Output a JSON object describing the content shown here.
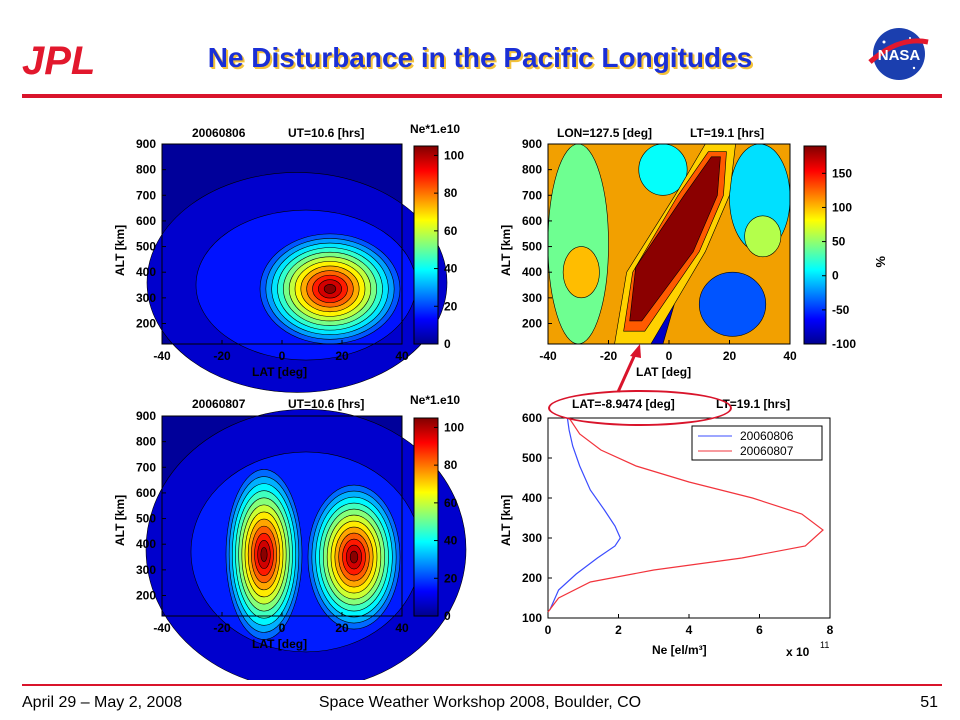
{
  "slide": {
    "title": "Ne Disturbance in the Pacific Longitudes",
    "footer_left": "April 29 – May 2, 2008",
    "footer_center": "Space Weather Workshop 2008, Boulder, CO",
    "footer_right": "51",
    "logo_left_text": "JPL",
    "logo_right_text": "NASA",
    "accent_color": "#d9142b",
    "title_color": "#1a2fd6"
  },
  "chart_data": [
    {
      "type": "heatmap",
      "title_left": "20060806",
      "title_right": "UT=10.6 [hrs]",
      "xlabel": "LAT [deg]",
      "ylabel": "ALT [km]",
      "xticks": [
        "-40",
        "-20",
        "0",
        "20",
        "40"
      ],
      "yticks": [
        "900",
        "800",
        "700",
        "600",
        "500",
        "400",
        "300",
        "200"
      ],
      "colorbar_title": "Ne*1.e10",
      "colorbar_ticks": [
        "100",
        "80",
        "60",
        "40",
        "20",
        "0"
      ],
      "xlim": [
        -40,
        40
      ],
      "ylim": [
        120,
        900
      ],
      "clim": [
        0,
        105
      ],
      "peaks": [
        {
          "lat": 18,
          "alt": 330,
          "value": 100
        }
      ]
    },
    {
      "type": "heatmap",
      "title_left": "LON=127.5 [deg]",
      "title_right": "LT=19.1 [hrs]",
      "xlabel": "LAT [deg]",
      "ylabel": "ALT [km]",
      "xticks": [
        "-40",
        "-20",
        "0",
        "20",
        "40"
      ],
      "yticks": [
        "900",
        "800",
        "700",
        "600",
        "500",
        "400",
        "300",
        "200"
      ],
      "colorbar_title": "",
      "colorbar_unit": "%",
      "colorbar_ticks": [
        "150",
        "100",
        "50",
        "0",
        "-50",
        "-100"
      ],
      "xlim": [
        -40,
        40
      ],
      "ylim": [
        120,
        900
      ],
      "clim": [
        -100,
        190
      ]
    },
    {
      "type": "heatmap",
      "title_left": "20060807",
      "title_right": "UT=10.6 [hrs]",
      "xlabel": "LAT [deg]",
      "ylabel": "ALT [km]",
      "xticks": [
        "-40",
        "-20",
        "0",
        "20",
        "40"
      ],
      "yticks": [
        "900",
        "800",
        "700",
        "600",
        "500",
        "400",
        "300",
        "200"
      ],
      "colorbar_title": "Ne*1.e10",
      "colorbar_ticks": [
        "100",
        "80",
        "60",
        "40",
        "20",
        "0"
      ],
      "xlim": [
        -40,
        40
      ],
      "ylim": [
        120,
        900
      ],
      "clim": [
        0,
        105
      ],
      "peaks": [
        {
          "lat": -6,
          "alt": 360,
          "value": 100
        },
        {
          "lat": 24,
          "alt": 350,
          "value": 100
        }
      ]
    },
    {
      "type": "line",
      "title_left": "LAT=-8.9474 [deg]",
      "title_right": "LT=19.1 [hrs]",
      "xlabel": "Ne [el/m³]",
      "ylabel": "ALT [km]",
      "x_multiplier": "x 10",
      "x_multiplier_exp": "11",
      "xticks": [
        "0",
        "2",
        "4",
        "6",
        "8"
      ],
      "yticks": [
        "600",
        "500",
        "400",
        "300",
        "200",
        "100"
      ],
      "xlim": [
        0,
        8
      ],
      "ylim": [
        100,
        600
      ],
      "legend": "top-right",
      "series": [
        {
          "name": "20060806",
          "color": "#3b4cff",
          "x": [
            0.05,
            0.3,
            0.8,
            1.4,
            1.9,
            2.05,
            1.9,
            1.6,
            1.2,
            0.9,
            0.7,
            0.6,
            0.55
          ],
          "y": [
            120,
            170,
            210,
            250,
            280,
            300,
            330,
            370,
            420,
            480,
            530,
            570,
            600
          ]
        },
        {
          "name": "20060807",
          "color": "#f2343c",
          "x": [
            0.0,
            0.3,
            1.2,
            3.0,
            5.5,
            7.3,
            7.8,
            7.2,
            5.8,
            4.0,
            2.5,
            1.5,
            0.9,
            0.6
          ],
          "y": [
            115,
            150,
            190,
            220,
            250,
            280,
            320,
            360,
            400,
            440,
            480,
            520,
            560,
            600
          ]
        }
      ]
    }
  ]
}
